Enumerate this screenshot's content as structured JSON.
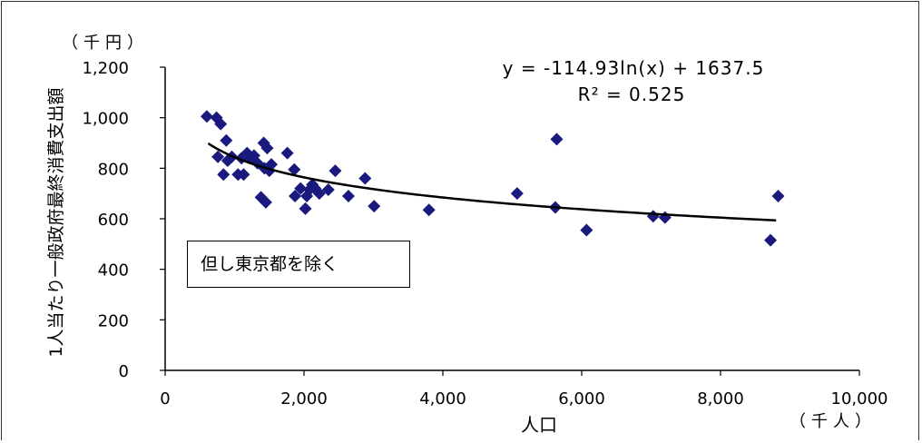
{
  "chart_data": {
    "type": "scatter",
    "y_unit": "（千円）",
    "x_unit": "（千人）",
    "xlabel": "人口",
    "ylabel": "1人当たり一般政府最終消費支出額",
    "xlim": [
      0,
      10000
    ],
    "ylim": [
      0,
      1200
    ],
    "x_ticks": [
      "0",
      "2,000",
      "4,000",
      "6,000",
      "8,000",
      "10,000"
    ],
    "y_ticks": [
      "0",
      "200",
      "400",
      "600",
      "800",
      "1,000",
      "1,200"
    ],
    "grid": false,
    "note": "但し東京都を除く",
    "trendline": {
      "type": "logarithmic",
      "a": -114.93,
      "b": 1637.5,
      "equation": "y = -114.93ln(x) + 1637.5",
      "r2": "R² = 0.525",
      "x_range": [
        620,
        8800
      ]
    },
    "marker_color": "#1a1a7e",
    "line_color": "#000000",
    "points": [
      [
        600,
        1005
      ],
      [
        740,
        1000
      ],
      [
        800,
        975
      ],
      [
        880,
        910
      ],
      [
        760,
        845
      ],
      [
        840,
        775
      ],
      [
        900,
        830
      ],
      [
        960,
        845
      ],
      [
        1050,
        775
      ],
      [
        1100,
        840
      ],
      [
        1130,
        775
      ],
      [
        1180,
        860
      ],
      [
        1220,
        840
      ],
      [
        1280,
        850
      ],
      [
        1330,
        820
      ],
      [
        1380,
        685
      ],
      [
        1420,
        900
      ],
      [
        1430,
        800
      ],
      [
        1450,
        665
      ],
      [
        1470,
        880
      ],
      [
        1500,
        790
      ],
      [
        1530,
        815
      ],
      [
        1760,
        860
      ],
      [
        1860,
        795
      ],
      [
        1870,
        690
      ],
      [
        1950,
        720
      ],
      [
        2020,
        640
      ],
      [
        2040,
        690
      ],
      [
        2080,
        715
      ],
      [
        2120,
        735
      ],
      [
        2160,
        720
      ],
      [
        2220,
        700
      ],
      [
        2350,
        715
      ],
      [
        2450,
        790
      ],
      [
        2640,
        690
      ],
      [
        2880,
        760
      ],
      [
        3010,
        650
      ],
      [
        3800,
        635
      ],
      [
        5070,
        700
      ],
      [
        5620,
        645
      ],
      [
        5640,
        915
      ],
      [
        6070,
        555
      ],
      [
        7030,
        610
      ],
      [
        7200,
        605
      ],
      [
        8720,
        515
      ],
      [
        8830,
        690
      ]
    ]
  }
}
